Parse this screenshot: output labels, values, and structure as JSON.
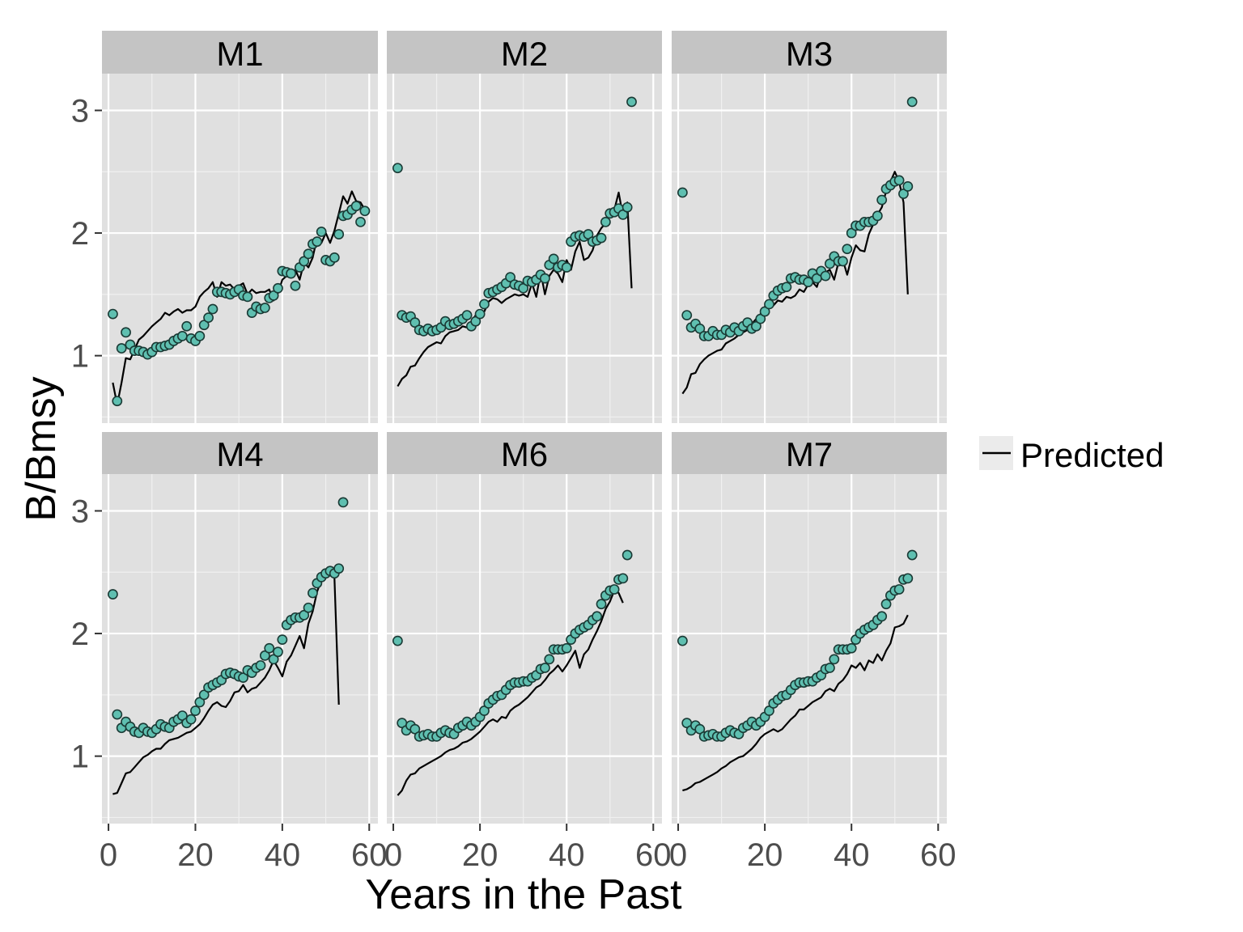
{
  "chart_data": {
    "type": "scatter",
    "xlabel": "Years in the Past",
    "ylabel": "B/Bmsy",
    "xlim": [
      -1.5,
      62
    ],
    "ylim": [
      0.45,
      3.3
    ],
    "x_ticks": [
      0,
      20,
      40,
      60
    ],
    "y_ticks": [
      1,
      2,
      3
    ],
    "grid": true,
    "legend": {
      "position": "right",
      "entries": [
        {
          "label": "Predicted",
          "kind": "line"
        }
      ]
    },
    "colors": {
      "points": "#5fbfb0",
      "point_stroke": "#1a3a35",
      "line": "#000000",
      "panel_bg": "#e0e0e0",
      "strip_bg": "#c4c4c4",
      "grid": "#ffffff"
    },
    "panels": [
      {
        "name": "M1",
        "observed": [
          1.34,
          0.63,
          1.06,
          1.19,
          1.09,
          1.04,
          1.04,
          1.03,
          1.01,
          1.03,
          1.07,
          1.07,
          1.08,
          1.09,
          1.12,
          1.14,
          1.16,
          1.24,
          1.14,
          1.12,
          1.16,
          1.25,
          1.31,
          1.38,
          1.52,
          1.52,
          1.51,
          1.5,
          1.52,
          1.54,
          1.49,
          1.48,
          1.35,
          1.4,
          1.38,
          1.39,
          1.47,
          1.49,
          1.55,
          1.69,
          1.68,
          1.67,
          1.57,
          1.72,
          1.77,
          1.83,
          1.91,
          1.93,
          2.01,
          1.78,
          1.77,
          1.8,
          1.99,
          2.14,
          2.15,
          2.19,
          2.22,
          2.09,
          2.18
        ],
        "predicted": [
          0.78,
          0.6,
          0.78,
          0.98,
          0.97,
          1.05,
          1.13,
          1.16,
          1.2,
          1.24,
          1.27,
          1.3,
          1.35,
          1.33,
          1.36,
          1.38,
          1.35,
          1.37,
          1.37,
          1.4,
          1.48,
          1.52,
          1.55,
          1.6,
          1.48,
          1.6,
          1.57,
          1.58,
          1.54,
          1.57,
          1.59,
          1.5,
          1.54,
          1.51,
          1.52,
          1.52,
          1.54,
          1.45,
          1.51,
          1.62,
          1.65,
          1.64,
          1.7,
          1.62,
          1.76,
          1.72,
          1.8,
          1.96,
          1.92,
          2.0,
          1.92,
          2.02,
          2.16,
          2.3,
          2.24,
          2.34,
          2.26,
          2.25,
          2.19
        ]
      },
      {
        "name": "M2",
        "observed": [
          2.53,
          1.33,
          1.31,
          1.32,
          1.27,
          1.21,
          1.2,
          1.22,
          1.2,
          1.21,
          1.23,
          1.28,
          1.25,
          1.26,
          1.28,
          1.3,
          1.33,
          1.24,
          1.28,
          1.34,
          1.42,
          1.51,
          1.52,
          1.54,
          1.56,
          1.59,
          1.64,
          1.58,
          1.57,
          1.55,
          1.61,
          1.6,
          1.62,
          1.66,
          1.63,
          1.74,
          1.79,
          1.72,
          1.74,
          1.72,
          1.93,
          1.97,
          1.98,
          1.97,
          1.99,
          1.93,
          1.94,
          1.96,
          2.09,
          2.16,
          2.17,
          2.2,
          2.15,
          2.21,
          3.07
        ],
        "predicted": [
          0.75,
          0.81,
          0.84,
          0.91,
          0.92,
          0.98,
          1.03,
          1.07,
          1.09,
          1.11,
          1.1,
          1.16,
          1.19,
          1.2,
          1.21,
          1.24,
          1.23,
          1.27,
          1.33,
          1.35,
          1.36,
          1.44,
          1.47,
          1.46,
          1.43,
          1.46,
          1.48,
          1.5,
          1.49,
          1.5,
          1.48,
          1.59,
          1.48,
          1.68,
          1.5,
          1.65,
          1.7,
          1.67,
          1.6,
          1.78,
          1.7,
          1.85,
          1.93,
          1.78,
          1.8,
          1.86,
          1.98,
          2.04,
          2.08,
          2.15,
          2.19,
          2.33,
          2.14,
          2.25,
          1.55
        ]
      },
      {
        "name": "M3",
        "observed": [
          2.33,
          1.33,
          1.23,
          1.26,
          1.22,
          1.16,
          1.16,
          1.2,
          1.17,
          1.17,
          1.21,
          1.19,
          1.23,
          1.2,
          1.24,
          1.27,
          1.22,
          1.24,
          1.3,
          1.36,
          1.42,
          1.49,
          1.53,
          1.55,
          1.56,
          1.63,
          1.64,
          1.62,
          1.62,
          1.6,
          1.67,
          1.63,
          1.69,
          1.65,
          1.75,
          1.81,
          1.77,
          1.77,
          1.87,
          2.0,
          2.06,
          2.06,
          2.09,
          2.09,
          2.1,
          2.14,
          2.27,
          2.36,
          2.39,
          2.42,
          2.43,
          2.32,
          2.38,
          3.07
        ],
        "predicted": [
          0.69,
          0.74,
          0.85,
          0.86,
          0.93,
          0.97,
          1.0,
          1.02,
          1.04,
          1.05,
          1.1,
          1.12,
          1.14,
          1.17,
          1.19,
          1.21,
          1.26,
          1.3,
          1.34,
          1.4,
          1.41,
          1.41,
          1.45,
          1.44,
          1.48,
          1.47,
          1.49,
          1.54,
          1.52,
          1.58,
          1.6,
          1.56,
          1.67,
          1.68,
          1.7,
          1.62,
          1.76,
          1.78,
          1.66,
          1.8,
          1.9,
          1.86,
          1.85,
          1.99,
          2.07,
          2.15,
          2.21,
          2.34,
          2.42,
          2.5,
          2.42,
          2.25,
          1.5
        ]
      },
      {
        "name": "M4",
        "observed": [
          2.32,
          1.34,
          1.23,
          1.28,
          1.24,
          1.2,
          1.19,
          1.23,
          1.2,
          1.19,
          1.22,
          1.26,
          1.24,
          1.23,
          1.28,
          1.3,
          1.33,
          1.27,
          1.3,
          1.37,
          1.44,
          1.5,
          1.56,
          1.58,
          1.6,
          1.62,
          1.67,
          1.68,
          1.67,
          1.65,
          1.64,
          1.7,
          1.68,
          1.72,
          1.74,
          1.82,
          1.88,
          1.79,
          1.85,
          1.95,
          2.07,
          2.11,
          2.13,
          2.13,
          2.15,
          2.21,
          2.33,
          2.41,
          2.46,
          2.49,
          2.51,
          2.49,
          2.53,
          3.07
        ],
        "predicted": [
          0.69,
          0.7,
          0.78,
          0.86,
          0.87,
          0.91,
          0.95,
          0.99,
          1.01,
          1.04,
          1.06,
          1.06,
          1.1,
          1.13,
          1.14,
          1.15,
          1.17,
          1.19,
          1.2,
          1.23,
          1.26,
          1.31,
          1.37,
          1.42,
          1.44,
          1.41,
          1.4,
          1.45,
          1.52,
          1.53,
          1.58,
          1.52,
          1.55,
          1.56,
          1.6,
          1.64,
          1.7,
          1.78,
          1.72,
          1.65,
          1.77,
          1.82,
          1.9,
          1.98,
          1.88,
          2.08,
          2.18,
          2.34,
          2.44,
          2.51,
          2.52,
          2.45,
          1.42
        ]
      },
      {
        "name": "M6",
        "observed": [
          1.94,
          1.27,
          1.21,
          1.25,
          1.22,
          1.16,
          1.17,
          1.18,
          1.16,
          1.16,
          1.19,
          1.21,
          1.19,
          1.18,
          1.23,
          1.25,
          1.28,
          1.25,
          1.28,
          1.32,
          1.37,
          1.43,
          1.46,
          1.49,
          1.5,
          1.54,
          1.58,
          1.6,
          1.6,
          1.61,
          1.61,
          1.64,
          1.66,
          1.71,
          1.72,
          1.79,
          1.87,
          1.87,
          1.87,
          1.88,
          1.95,
          2.0,
          2.03,
          2.05,
          2.07,
          2.11,
          2.14,
          2.24,
          2.31,
          2.35,
          2.36,
          2.44,
          2.45,
          2.64
        ],
        "predicted": [
          0.68,
          0.72,
          0.8,
          0.85,
          0.86,
          0.9,
          0.92,
          0.94,
          0.96,
          0.98,
          1.0,
          1.03,
          1.05,
          1.06,
          1.08,
          1.11,
          1.12,
          1.14,
          1.17,
          1.2,
          1.24,
          1.28,
          1.3,
          1.28,
          1.32,
          1.31,
          1.37,
          1.4,
          1.42,
          1.45,
          1.48,
          1.52,
          1.56,
          1.58,
          1.62,
          1.67,
          1.7,
          1.74,
          1.69,
          1.74,
          1.8,
          1.86,
          1.72,
          1.83,
          1.87,
          1.95,
          2.02,
          2.1,
          2.2,
          2.26,
          2.35,
          2.33,
          2.25
        ]
      },
      {
        "name": "M7",
        "observed": [
          1.94,
          1.27,
          1.21,
          1.25,
          1.22,
          1.16,
          1.17,
          1.18,
          1.16,
          1.16,
          1.19,
          1.21,
          1.19,
          1.18,
          1.23,
          1.25,
          1.28,
          1.25,
          1.28,
          1.32,
          1.37,
          1.43,
          1.46,
          1.49,
          1.5,
          1.54,
          1.58,
          1.6,
          1.6,
          1.61,
          1.61,
          1.64,
          1.66,
          1.71,
          1.72,
          1.79,
          1.87,
          1.87,
          1.87,
          1.88,
          1.95,
          2.0,
          2.03,
          2.05,
          2.07,
          2.11,
          2.14,
          2.24,
          2.31,
          2.35,
          2.36,
          2.44,
          2.45,
          2.64
        ],
        "predicted": [
          0.72,
          0.73,
          0.75,
          0.78,
          0.79,
          0.81,
          0.83,
          0.85,
          0.87,
          0.9,
          0.92,
          0.95,
          0.97,
          0.99,
          1.0,
          1.03,
          1.06,
          1.1,
          1.15,
          1.18,
          1.2,
          1.22,
          1.2,
          1.22,
          1.26,
          1.3,
          1.33,
          1.38,
          1.38,
          1.41,
          1.44,
          1.46,
          1.48,
          1.53,
          1.55,
          1.53,
          1.59,
          1.62,
          1.67,
          1.74,
          1.72,
          1.76,
          1.7,
          1.78,
          1.76,
          1.83,
          1.78,
          1.86,
          1.92,
          2.05,
          2.06,
          2.08,
          2.15
        ]
      }
    ]
  }
}
